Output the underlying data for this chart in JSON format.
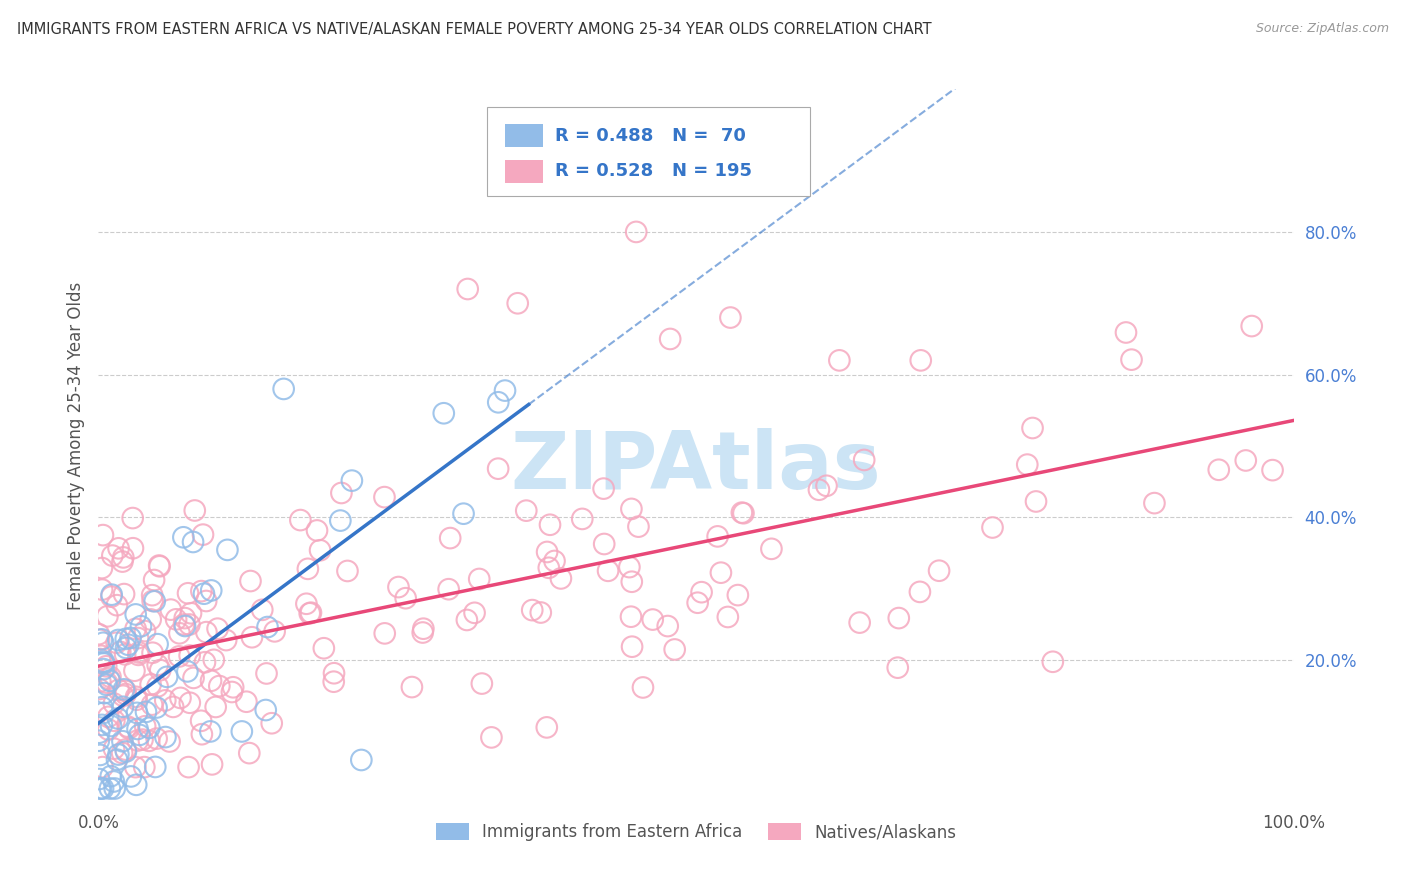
{
  "title": "IMMIGRANTS FROM EASTERN AFRICA VS NATIVE/ALASKAN FEMALE POVERTY AMONG 25-34 YEAR OLDS CORRELATION CHART",
  "source": "Source: ZipAtlas.com",
  "ylabel": "Female Poverty Among 25-34 Year Olds",
  "xlim": [
    0,
    1.0
  ],
  "ylim": [
    0,
    1.0
  ],
  "blue_R": 0.488,
  "blue_N": 70,
  "pink_R": 0.528,
  "pink_N": 195,
  "blue_color": "#92bce8",
  "pink_color": "#f5a8bf",
  "blue_line_color": "#3575c8",
  "pink_line_color": "#e84878",
  "legend_blue_label": "Immigrants from Eastern Africa",
  "legend_pink_label": "Natives/Alaskans",
  "background_color": "#ffffff",
  "grid_color": "#cccccc",
  "tick_color": "#4a7fd4",
  "watermark_color": "#cce4f5",
  "watermark_text": "ZIPAtlas"
}
